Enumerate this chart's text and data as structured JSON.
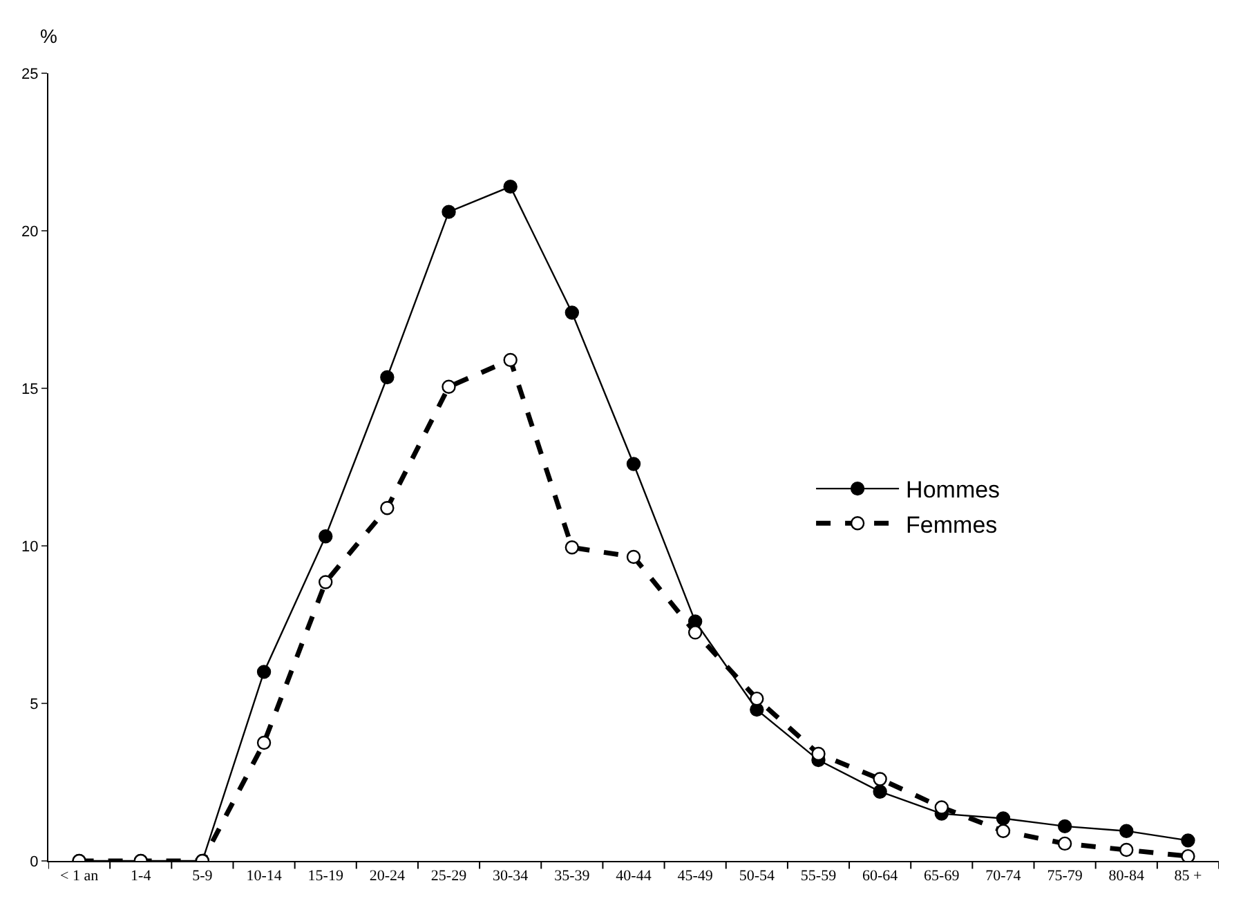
{
  "chart_data": {
    "type": "line",
    "ylabel": "%",
    "categories": [
      "< 1 an",
      "1-4",
      "5-9",
      "10-14",
      "15-19",
      "20-24",
      "25-29",
      "30-34",
      "35-39",
      "40-44",
      "45-49",
      "50-54",
      "55-59",
      "60-64",
      "65-69",
      "70-74",
      "75-79",
      "80-84",
      "85 +"
    ],
    "series": [
      {
        "name": "Hommes",
        "color": "#000000",
        "line_style": "solid",
        "values": [
          0,
          0,
          0,
          6.0,
          10.3,
          15.35,
          20.6,
          21.4,
          17.4,
          12.6,
          7.6,
          4.8,
          3.2,
          2.2,
          1.5,
          1.35,
          1.1,
          0.95,
          0.65
        ]
      },
      {
        "name": "Femmes",
        "color": "#000000",
        "line_style": "dashed",
        "values": [
          0,
          0,
          0,
          3.75,
          8.85,
          11.2,
          15.05,
          15.9,
          9.95,
          9.65,
          7.25,
          5.15,
          3.4,
          2.6,
          1.7,
          0.95,
          0.55,
          0.35,
          0.15
        ]
      }
    ],
    "ylim": [
      0,
      25
    ],
    "yticks": [
      0,
      5,
      10,
      15,
      20,
      25
    ],
    "legend": "right",
    "marker": "circle"
  }
}
